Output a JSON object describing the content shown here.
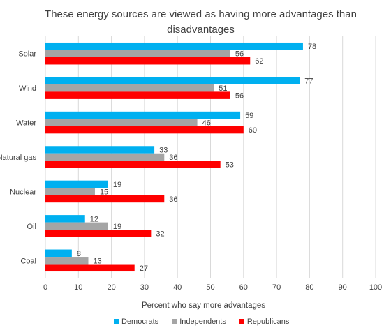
{
  "chart_data": {
    "type": "bar",
    "orientation": "horizontal",
    "title": "These energy sources are viewed as having more advantages than disadvantages",
    "categories": [
      "Solar",
      "Wind",
      "Water",
      "Natural gas",
      "Nuclear",
      "Oil",
      "Coal"
    ],
    "series": [
      {
        "name": "Democrats",
        "color": "#00B0F0",
        "values": [
          78,
          77,
          59,
          33,
          19,
          12,
          8
        ]
      },
      {
        "name": "Independents",
        "color": "#A5A5A5",
        "values": [
          56,
          51,
          46,
          36,
          15,
          19,
          13
        ]
      },
      {
        "name": "Republicans",
        "color": "#FF0000",
        "values": [
          62,
          56,
          60,
          53,
          36,
          32,
          27
        ]
      }
    ],
    "xlabel": "Percent who say more advantages",
    "ylabel": "",
    "xlim": [
      0,
      100
    ],
    "xticks": [
      0,
      10,
      20,
      30,
      40,
      50,
      60,
      70,
      80,
      90,
      100
    ],
    "grid": "vertical",
    "legend": "bottom",
    "data_labels": true
  }
}
